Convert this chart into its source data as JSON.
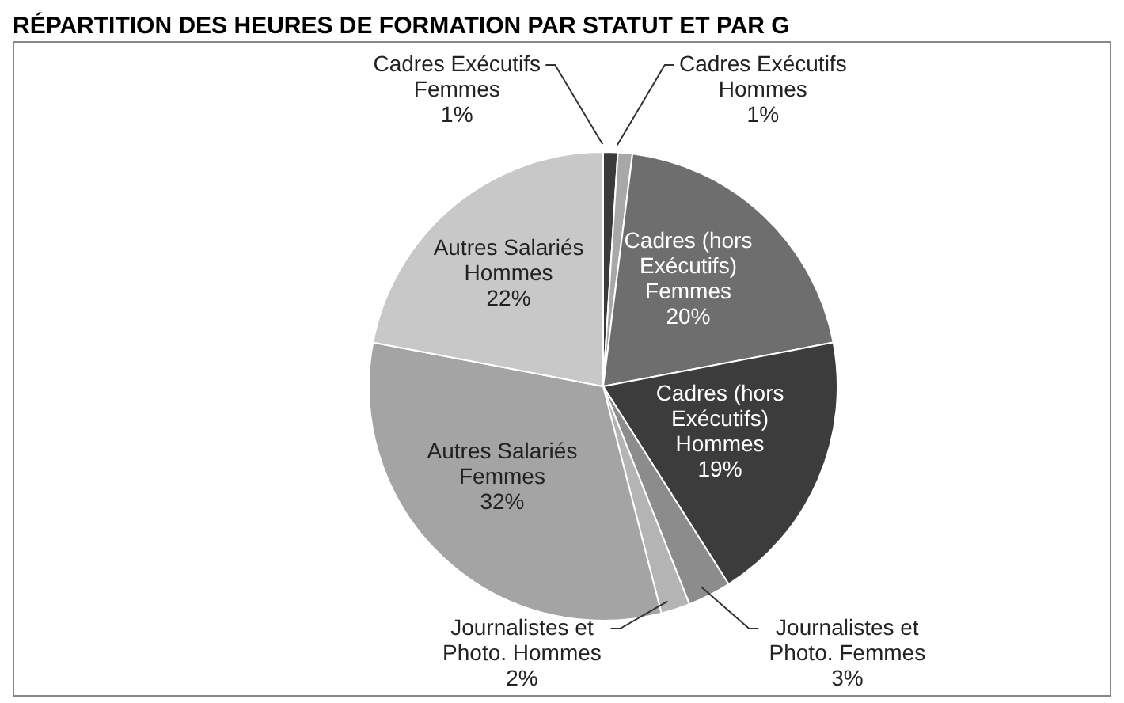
{
  "chart_data": {
    "type": "pie",
    "title": "RÉPARTITION DES HEURES DE FORMATION PAR STATUT ET PAR G",
    "categories": [
      "Cadres Exécutifs Femmes",
      "Cadres Exécutifs Hommes",
      "Cadres (hors Exécutifs) Femmes",
      "Cadres (hors Exécutifs) Hommes",
      "Journalistes et Photo. Femmes",
      "Journalistes et Photo. Hommes",
      "Autres Salariés Femmes",
      "Autres Salariés Hommes"
    ],
    "values": [
      1,
      1,
      20,
      19,
      3,
      2,
      32,
      22
    ],
    "colors": [
      "#3a3a3a",
      "#a8a8a8",
      "#6e6e6e",
      "#3c3c3c",
      "#8c8c8c",
      "#b4b4b4",
      "#a4a4a4",
      "#c8c8c8"
    ],
    "value_labels": [
      "1%",
      "1%",
      "20%",
      "19%",
      "3%",
      "2%",
      "32%",
      "22%"
    ]
  }
}
